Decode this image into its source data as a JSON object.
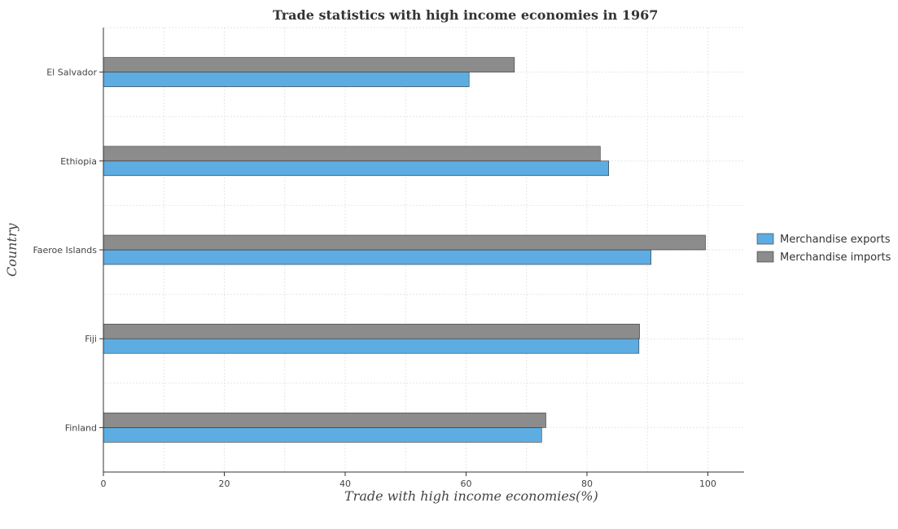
{
  "chart_data": {
    "type": "bar",
    "orientation": "horizontal",
    "title": "Trade statistics with high income economies in 1967",
    "xlabel": "Trade with high income economies(%)",
    "ylabel": "Country",
    "categories": [
      "El Salvador",
      "Ethiopia",
      "Faeroe Islands",
      "Fiji",
      "Finland"
    ],
    "series": [
      {
        "name": "Merchandise exports",
        "color": "#5dade2",
        "values": [
          60.5,
          83.6,
          90.6,
          88.6,
          72.5
        ]
      },
      {
        "name": "Merchandise imports",
        "color": "#8c8c8c",
        "values": [
          68.0,
          82.2,
          99.6,
          88.7,
          73.2
        ]
      }
    ],
    "xlim": [
      0,
      106
    ],
    "xticks": [
      0,
      20,
      40,
      60,
      80,
      100
    ],
    "grid": true,
    "legend_position": "right"
  }
}
